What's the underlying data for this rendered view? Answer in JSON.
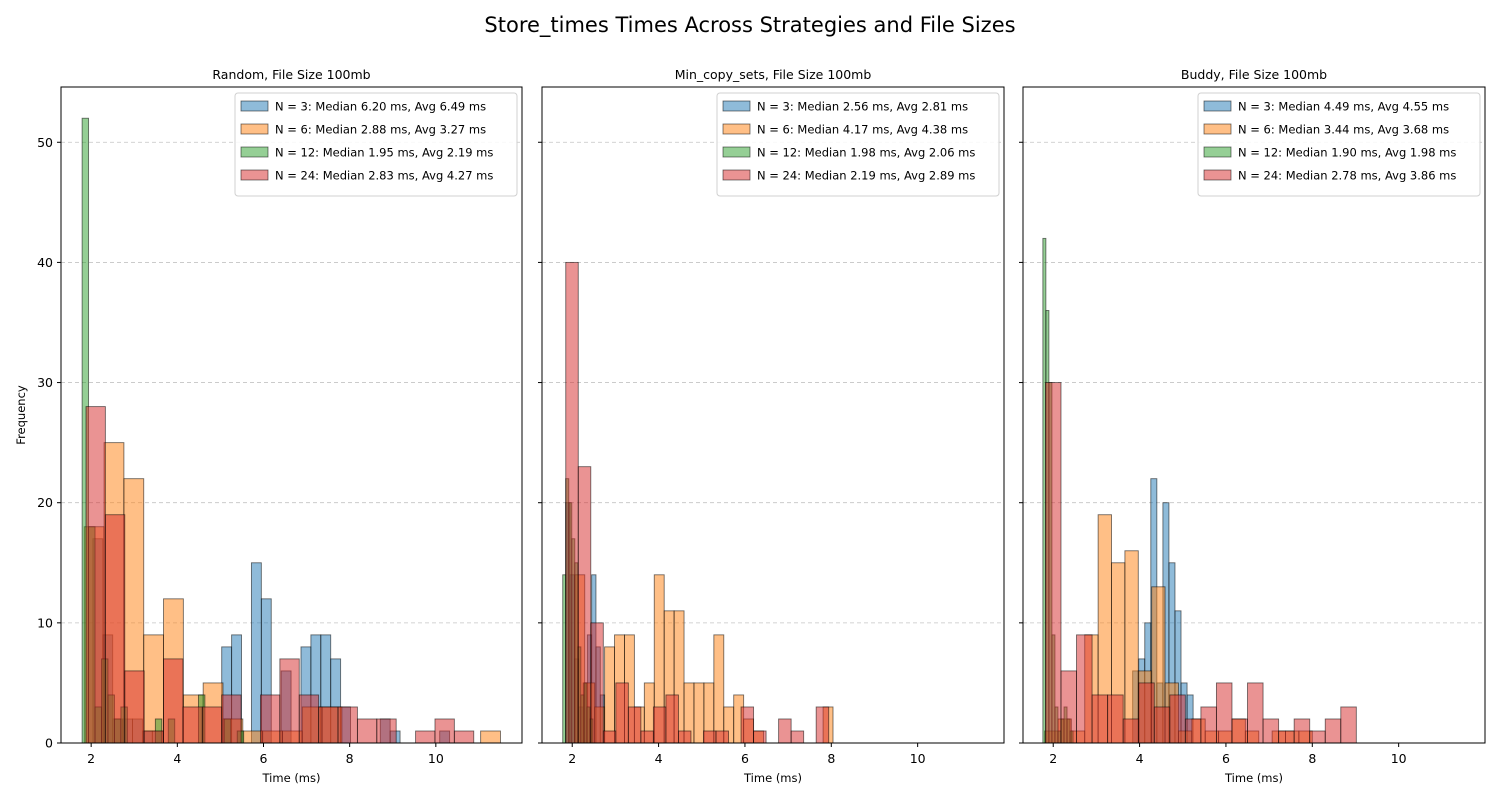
{
  "figure": {
    "title": "Store_times Times Across Strategies and File Sizes",
    "ylabel": "Frequency",
    "xlabel": "Time (ms)"
  },
  "chart_data": [
    {
      "type": "bar",
      "title": "Random, File Size 100mb",
      "xlabel": "Time (ms)",
      "ylabel": "Frequency",
      "xlim": [
        1.3,
        12.0
      ],
      "ylim": [
        0,
        54.6
      ],
      "xticks": [
        2,
        4,
        6,
        8,
        10
      ],
      "yticks": [
        0,
        10,
        20,
        30,
        40,
        50
      ],
      "grid": "y",
      "legend_position": "upper right",
      "legend": [
        "N = 3: Median 6.20 ms, Avg 6.49 ms",
        "N = 6: Median 2.88 ms, Avg 3.27 ms",
        "N = 12: Median 1.95 ms, Avg 2.19 ms",
        "N = 24: Median 2.83 ms, Avg 4.27 ms"
      ],
      "series": [
        {
          "name": "N = 3",
          "color": "#1f77b4",
          "bin_width": 0.23,
          "bins": [
            [
              2.04,
              17
            ],
            [
              2.27,
              9
            ],
            [
              2.5,
              2
            ],
            [
              2.73,
              2
            ],
            [
              2.96,
              2
            ],
            [
              3.19,
              1
            ],
            [
              3.42,
              1
            ],
            [
              5.03,
              8
            ],
            [
              5.26,
              9
            ],
            [
              5.72,
              15
            ],
            [
              5.95,
              12
            ],
            [
              6.41,
              6
            ],
            [
              6.87,
              8
            ],
            [
              7.1,
              9
            ],
            [
              7.33,
              9
            ],
            [
              7.56,
              7
            ],
            [
              7.79,
              3
            ],
            [
              8.71,
              2
            ],
            [
              8.94,
              1
            ],
            [
              10.09,
              1
            ]
          ]
        },
        {
          "name": "N = 6",
          "color": "#ff7f0e",
          "bin_width": 0.46,
          "bins": [
            [
              1.84,
              18
            ],
            [
              2.3,
              25
            ],
            [
              2.76,
              22
            ],
            [
              3.22,
              9
            ],
            [
              3.68,
              12
            ],
            [
              4.14,
              4
            ],
            [
              4.6,
              5
            ],
            [
              5.06,
              2
            ],
            [
              5.52,
              1
            ],
            [
              5.98,
              1
            ],
            [
              6.44,
              1
            ],
            [
              6.9,
              3
            ],
            [
              7.36,
              3
            ],
            [
              11.04,
              1
            ]
          ]
        },
        {
          "name": "N = 12",
          "color": "#2ca02c",
          "bin_width": 0.15,
          "bins": [
            [
              1.79,
              52
            ],
            [
              1.94,
              18
            ],
            [
              2.09,
              3
            ],
            [
              2.24,
              7
            ],
            [
              2.39,
              4
            ],
            [
              2.54,
              2
            ],
            [
              2.69,
              3
            ],
            [
              3.49,
              2
            ],
            [
              3.79,
              2
            ],
            [
              4.49,
              4
            ],
            [
              5.09,
              2
            ],
            [
              5.39,
              1
            ]
          ]
        },
        {
          "name": "N = 24",
          "color": "#d62728",
          "bin_width": 0.45,
          "bins": [
            [
              1.88,
              28
            ],
            [
              2.33,
              19
            ],
            [
              2.78,
              6
            ],
            [
              3.23,
              1
            ],
            [
              3.68,
              7
            ],
            [
              4.13,
              3
            ],
            [
              4.58,
              3
            ],
            [
              5.03,
              4
            ],
            [
              5.48,
              0
            ],
            [
              5.93,
              4
            ],
            [
              6.38,
              7
            ],
            [
              6.83,
              4
            ],
            [
              7.28,
              3
            ],
            [
              7.73,
              3
            ],
            [
              8.18,
              2
            ],
            [
              8.63,
              2
            ],
            [
              9.08,
              0
            ],
            [
              9.53,
              1
            ],
            [
              9.98,
              2
            ],
            [
              10.43,
              1
            ]
          ]
        }
      ]
    },
    {
      "type": "bar",
      "title": "Min_copy_sets, File Size 100mb",
      "xlabel": "Time (ms)",
      "ylabel": "",
      "xlim": [
        1.3,
        12.0
      ],
      "ylim": [
        0,
        54.6
      ],
      "xticks": [
        2,
        4,
        6,
        8,
        10
      ],
      "yticks": [
        0,
        10,
        20,
        30,
        40,
        50
      ],
      "grid": "y",
      "legend_position": "upper right",
      "legend": [
        "N = 3: Median 2.56 ms, Avg 2.81 ms",
        "N = 6: Median 4.17 ms, Avg 4.38 ms",
        "N = 12: Median 1.98 ms, Avg 2.06 ms",
        "N = 24: Median 2.19 ms, Avg 2.89 ms"
      ],
      "series": [
        {
          "name": "N = 3",
          "color": "#1f77b4",
          "bin_width": 0.1,
          "bins": [
            [
              1.85,
              20
            ],
            [
              1.95,
              14
            ],
            [
              2.05,
              7
            ],
            [
              2.15,
              3
            ],
            [
              2.25,
              5
            ],
            [
              2.35,
              9
            ],
            [
              2.45,
              14
            ],
            [
              2.55,
              8
            ],
            [
              2.65,
              4
            ]
          ]
        },
        {
          "name": "N = 6",
          "color": "#ff7f0e",
          "bin_width": 0.23,
          "bins": [
            [
              2.06,
              14
            ],
            [
              2.29,
              5
            ],
            [
              2.52,
              3
            ],
            [
              2.75,
              8
            ],
            [
              2.98,
              9
            ],
            [
              3.21,
              9
            ],
            [
              3.44,
              3
            ],
            [
              3.67,
              5
            ],
            [
              3.9,
              14
            ],
            [
              4.13,
              11
            ],
            [
              4.36,
              11
            ],
            [
              4.59,
              5
            ],
            [
              4.82,
              5
            ],
            [
              5.05,
              5
            ],
            [
              5.28,
              9
            ],
            [
              5.51,
              3
            ],
            [
              5.74,
              4
            ],
            [
              5.97,
              2
            ],
            [
              6.2,
              1
            ],
            [
              7.81,
              3
            ]
          ]
        },
        {
          "name": "N = 12",
          "color": "#2ca02c",
          "bin_width": 0.07,
          "bins": [
            [
              1.78,
              14
            ],
            [
              1.85,
              22
            ],
            [
              1.92,
              20
            ],
            [
              1.99,
              17
            ],
            [
              2.06,
              15
            ],
            [
              2.13,
              8
            ],
            [
              2.2,
              4
            ],
            [
              2.27,
              5
            ],
            [
              2.34,
              3
            ],
            [
              2.41,
              2
            ]
          ]
        },
        {
          "name": "N = 24",
          "color": "#d62728",
          "bin_width": 0.29,
          "bins": [
            [
              1.85,
              40
            ],
            [
              2.14,
              23
            ],
            [
              2.43,
              10
            ],
            [
              2.72,
              1
            ],
            [
              3.01,
              5
            ],
            [
              3.3,
              3
            ],
            [
              3.59,
              1
            ],
            [
              3.88,
              3
            ],
            [
              4.17,
              4
            ],
            [
              4.46,
              1
            ],
            [
              5.04,
              1
            ],
            [
              5.33,
              1
            ],
            [
              5.91,
              3
            ],
            [
              6.2,
              1
            ],
            [
              6.78,
              2
            ],
            [
              7.07,
              1
            ],
            [
              7.65,
              3
            ]
          ]
        }
      ]
    },
    {
      "type": "bar",
      "title": "Buddy, File Size 100mb",
      "xlabel": "Time (ms)",
      "ylabel": "",
      "xlim": [
        1.3,
        12.0
      ],
      "ylim": [
        0,
        54.6
      ],
      "xticks": [
        2,
        4,
        6,
        8,
        10
      ],
      "yticks": [
        0,
        10,
        20,
        30,
        40,
        50
      ],
      "grid": "y",
      "legend_position": "upper right",
      "legend": [
        "N = 3: Median 4.49 ms, Avg 4.55 ms",
        "N = 6: Median 3.44 ms, Avg 3.68 ms",
        "N = 12: Median 1.90 ms, Avg 1.98 ms",
        "N = 24: Median 2.78 ms, Avg 3.86 ms"
      ],
      "series": [
        {
          "name": "N = 3",
          "color": "#1f77b4",
          "bin_width": 0.14,
          "bins": [
            [
              3.84,
              6
            ],
            [
              3.98,
              7
            ],
            [
              4.12,
              10
            ],
            [
              4.26,
              22
            ],
            [
              4.4,
              5
            ],
            [
              4.54,
              20
            ],
            [
              4.68,
              15
            ],
            [
              4.82,
              11
            ],
            [
              4.96,
              5
            ],
            [
              5.1,
              4
            ]
          ]
        },
        {
          "name": "N = 6",
          "color": "#ff7f0e",
          "bin_width": 0.31,
          "bins": [
            [
              1.8,
              1
            ],
            [
              2.11,
              2
            ],
            [
              2.42,
              1
            ],
            [
              2.73,
              9
            ],
            [
              3.04,
              19
            ],
            [
              3.35,
              15
            ],
            [
              3.66,
              16
            ],
            [
              3.97,
              6
            ],
            [
              4.28,
              13
            ],
            [
              4.59,
              5
            ],
            [
              4.9,
              1
            ],
            [
              5.21,
              2
            ],
            [
              5.52,
              1
            ],
            [
              5.83,
              1
            ],
            [
              6.14,
              2
            ],
            [
              6.45,
              1
            ],
            [
              7.07,
              1
            ],
            [
              7.38,
              1
            ],
            [
              7.69,
              1
            ]
          ]
        },
        {
          "name": "N = 12",
          "color": "#2ca02c",
          "bin_width": 0.07,
          "bins": [
            [
              1.76,
              42
            ],
            [
              1.83,
              36
            ],
            [
              1.9,
              30
            ],
            [
              1.97,
              9
            ],
            [
              2.04,
              3
            ],
            [
              2.11,
              1
            ],
            [
              2.18,
              2
            ],
            [
              2.25,
              3
            ],
            [
              2.32,
              2
            ],
            [
              2.39,
              1
            ]
          ]
        },
        {
          "name": "N = 24",
          "color": "#d62728",
          "bin_width": 0.36,
          "bins": [
            [
              1.82,
              30
            ],
            [
              2.18,
              6
            ],
            [
              2.54,
              9
            ],
            [
              2.9,
              4
            ],
            [
              3.26,
              4
            ],
            [
              3.62,
              2
            ],
            [
              3.98,
              5
            ],
            [
              4.34,
              3
            ],
            [
              4.7,
              4
            ],
            [
              5.06,
              2
            ],
            [
              5.42,
              3
            ],
            [
              5.78,
              5
            ],
            [
              6.14,
              2
            ],
            [
              6.5,
              5
            ],
            [
              6.86,
              2
            ],
            [
              7.22,
              1
            ],
            [
              7.58,
              2
            ],
            [
              7.94,
              1
            ],
            [
              8.3,
              2
            ],
            [
              8.66,
              3
            ]
          ]
        }
      ]
    }
  ]
}
